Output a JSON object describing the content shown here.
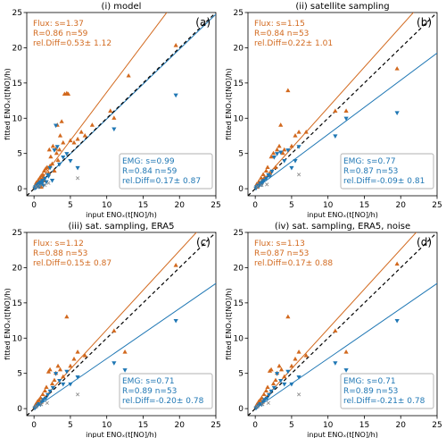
{
  "chart_data": [
    {
      "type": "scatter",
      "title": "(i) model",
      "panel_label": "(a)",
      "xlabel": "input ENOₓ(t[NO]/h)",
      "ylabel": "fitted ENOₓ(t[NO]/h)",
      "xlim": [
        -1,
        25
      ],
      "ylim": [
        -1,
        25
      ],
      "xticks": [
        0,
        5,
        10,
        15,
        20,
        25
      ],
      "yticks": [
        0,
        5,
        10,
        15,
        20,
        25
      ],
      "grid": false,
      "flux_box": {
        "lines": [
          "Flux: s=1.37",
          "R=0.86 n=59",
          "rel.Diff=0.53± 1.12"
        ],
        "position": "top-left"
      },
      "emg_box": {
        "lines": [
          "EMG: s=0.99",
          "R=0.84 n=59",
          "rel.Diff=0.17± 0.87"
        ],
        "position": "bottom-right"
      },
      "flux_fit_slope": 1.37,
      "emg_fit_slope": 0.99,
      "series": [
        {
          "name": "Flux",
          "color": "#d2691e",
          "marker": "triangle-up",
          "x": [
            0.1,
            0.2,
            0.3,
            0.4,
            0.5,
            0.5,
            0.6,
            0.7,
            0.8,
            0.9,
            1.0,
            1.0,
            1.1,
            1.2,
            1.3,
            1.4,
            1.5,
            1.6,
            1.8,
            2.0,
            2.1,
            2.2,
            2.3,
            2.5,
            2.6,
            2.8,
            3.0,
            3.1,
            3.2,
            3.3,
            3.5,
            3.6,
            3.8,
            4.0,
            4.2,
            4.5,
            4.7,
            5.0,
            5.5,
            6.0,
            6.5,
            7.0,
            8.0,
            10.5,
            11.0,
            13.0,
            19.5
          ],
          "y": [
            0.2,
            0.5,
            0.8,
            0.3,
            1.0,
            0.4,
            1.2,
            0.6,
            1.5,
            0.9,
            1.8,
            0.2,
            1.3,
            2.0,
            1.6,
            2.5,
            1.1,
            2.8,
            3.0,
            2.2,
            5.5,
            3.2,
            4.5,
            3.5,
            6.0,
            2.5,
            5.6,
            5.0,
            9.0,
            4.0,
            5.5,
            7.5,
            9.5,
            6.5,
            13.4,
            13.5,
            13.4,
            6.8,
            6.5,
            7.0,
            8.0,
            7.5,
            9.0,
            11.0,
            10.0,
            16.0,
            20.3
          ]
        },
        {
          "name": "EMG",
          "color": "#1f77b4",
          "marker": "triangle-down",
          "x": [
            0.1,
            0.2,
            0.3,
            0.4,
            0.5,
            0.6,
            0.7,
            0.8,
            0.9,
            1.0,
            1.1,
            1.2,
            1.3,
            1.5,
            1.7,
            1.9,
            2.0,
            2.2,
            2.5,
            2.8,
            3.0,
            3.2,
            3.5,
            4.0,
            4.5,
            5.0,
            6.0,
            11.0,
            19.5
          ],
          "y": [
            0.1,
            0.3,
            0.2,
            0.5,
            0.4,
            0.7,
            0.3,
            0.9,
            0.6,
            1.0,
            0.8,
            1.2,
            0.5,
            1.5,
            1.0,
            2.0,
            1.8,
            3.0,
            1.2,
            5.5,
            9.0,
            6.0,
            3.5,
            4.5,
            5.0,
            4.0,
            3.0,
            8.5,
            13.3
          ]
        },
        {
          "name": "",
          "color": "#888888",
          "marker": "x",
          "x": [
            0.3,
            0.8,
            1.5,
            2.0,
            6.0
          ],
          "y": [
            0.3,
            0.4,
            0.5,
            0.8,
            1.5
          ]
        }
      ]
    },
    {
      "type": "scatter",
      "title": "(ii) satellite sampling",
      "panel_label": "(b)",
      "xlabel": "input ENOₓ(t[NO]/h)",
      "ylabel": "fitted ENOₓ(t[NO]/h)",
      "xlim": [
        -1,
        25
      ],
      "ylim": [
        -1,
        25
      ],
      "xticks": [
        0,
        5,
        10,
        15,
        20,
        25
      ],
      "yticks": [
        0,
        5,
        10,
        15,
        20,
        25
      ],
      "grid": false,
      "flux_box": {
        "lines": [
          "Flux: s=1.15",
          "R=0.84 n=53",
          "rel.Diff=0.22± 1.01"
        ],
        "position": "top-left"
      },
      "emg_box": {
        "lines": [
          "EMG: s=0.77",
          "R=0.87 n=53",
          "rel.Diff=-0.09± 0.81"
        ],
        "position": "bottom-right"
      },
      "flux_fit_slope": 1.15,
      "emg_fit_slope": 0.77,
      "series": [
        {
          "name": "Flux",
          "color": "#d2691e",
          "marker": "triangle-up",
          "x": [
            0.1,
            0.2,
            0.3,
            0.5,
            0.6,
            0.8,
            1.0,
            1.1,
            1.3,
            1.5,
            1.7,
            2.0,
            2.2,
            2.5,
            2.8,
            3.0,
            3.3,
            3.5,
            3.8,
            4.0,
            4.5,
            5.0,
            5.5,
            6.0,
            7.0,
            11.0,
            12.5,
            19.5
          ],
          "y": [
            0.3,
            0.6,
            0.2,
            1.0,
            0.8,
            1.5,
            1.2,
            2.0,
            1.6,
            2.5,
            3.0,
            2.2,
            4.5,
            5.0,
            3.0,
            5.5,
            6.0,
            9.0,
            5.0,
            5.5,
            13.9,
            6.0,
            7.5,
            8.0,
            8.0,
            11.0,
            11.0,
            17.0
          ]
        },
        {
          "name": "EMG",
          "color": "#1f77b4",
          "marker": "triangle-down",
          "x": [
            0.1,
            0.2,
            0.4,
            0.5,
            0.7,
            0.9,
            1.0,
            1.2,
            1.5,
            1.8,
            2.0,
            2.3,
            2.6,
            3.0,
            3.5,
            4.0,
            4.5,
            5.0,
            5.5,
            6.0,
            11.0,
            12.5,
            19.5
          ],
          "y": [
            0.1,
            0.3,
            0.5,
            0.4,
            0.8,
            0.6,
            1.0,
            1.2,
            1.5,
            2.0,
            1.8,
            2.5,
            4.5,
            5.0,
            5.2,
            4.0,
            5.5,
            3.0,
            4.0,
            6.0,
            7.5,
            10.0,
            10.8
          ]
        },
        {
          "name": "",
          "color": "#888888",
          "marker": "x",
          "x": [
            0.3,
            0.9,
            1.6,
            6.0
          ],
          "y": [
            0.3,
            0.5,
            0.6,
            2.0
          ]
        }
      ]
    },
    {
      "type": "scatter",
      "title": "(iii) sat. sampling, ERA5",
      "panel_label": "(c)",
      "xlabel": "input ENOₓ(t[NO]/h)",
      "ylabel": "fitted ENOₓ(t[NO]/h)",
      "xlim": [
        -1,
        25
      ],
      "ylim": [
        -1,
        25
      ],
      "xticks": [
        0,
        5,
        10,
        15,
        20,
        25
      ],
      "yticks": [
        0,
        5,
        10,
        15,
        20,
        25
      ],
      "grid": false,
      "flux_box": {
        "lines": [
          "Flux: s=1.12",
          "R=0.88 n=53",
          "rel.Diff=0.15± 0.87"
        ],
        "position": "top-left"
      },
      "emg_box": {
        "lines": [
          "EMG: s=0.71",
          "R=0.89 n=53",
          "rel.Diff=-0.20± 0.78"
        ],
        "position": "bottom-right"
      },
      "flux_fit_slope": 1.12,
      "emg_fit_slope": 0.71,
      "series": [
        {
          "name": "Flux",
          "color": "#d2691e",
          "marker": "triangle-up",
          "x": [
            0.1,
            0.2,
            0.4,
            0.5,
            0.7,
            0.9,
            1.0,
            1.2,
            1.5,
            1.7,
            2.0,
            2.2,
            2.5,
            2.8,
            3.0,
            3.3,
            3.6,
            4.0,
            4.5,
            5.0,
            5.5,
            6.0,
            7.0,
            11.0,
            12.5,
            19.5
          ],
          "y": [
            0.2,
            0.5,
            0.8,
            1.0,
            1.2,
            1.5,
            0.9,
            2.0,
            2.5,
            3.0,
            5.2,
            5.5,
            3.5,
            4.0,
            5.0,
            6.0,
            5.5,
            4.5,
            13.0,
            6.0,
            7.0,
            8.0,
            7.5,
            11.0,
            8.0,
            20.3
          ]
        },
        {
          "name": "EMG",
          "color": "#1f77b4",
          "marker": "triangle-down",
          "x": [
            0.1,
            0.3,
            0.5,
            0.7,
            0.9,
            1.1,
            1.3,
            1.6,
            1.9,
            2.2,
            2.6,
            3.0,
            3.5,
            4.0,
            4.5,
            5.0,
            6.0,
            11.0,
            12.5,
            19.5
          ],
          "y": [
            0.1,
            0.3,
            0.5,
            0.7,
            0.6,
            1.0,
            1.3,
            1.5,
            2.0,
            2.5,
            3.0,
            5.0,
            4.0,
            3.5,
            5.3,
            3.5,
            4.5,
            6.5,
            5.5,
            12.5
          ]
        },
        {
          "name": "",
          "color": "#888888",
          "marker": "x",
          "x": [
            0.3,
            1.0,
            1.8,
            6.0
          ],
          "y": [
            0.3,
            0.6,
            0.8,
            2.0
          ]
        }
      ]
    },
    {
      "type": "scatter",
      "title": "(iv) sat. sampling, ERA5, noise",
      "panel_label": "(d)",
      "xlabel": "input ENOₓ(t[NO]/h)",
      "ylabel": "fitted ENOₓ(t[NO]/h)",
      "xlim": [
        -1,
        25
      ],
      "ylim": [
        -1,
        25
      ],
      "xticks": [
        0,
        5,
        10,
        15,
        20,
        25
      ],
      "yticks": [
        0,
        5,
        10,
        15,
        20,
        25
      ],
      "grid": false,
      "flux_box": {
        "lines": [
          "Flux: s=1.13",
          "R=0.87 n=53",
          "rel.Diff=0.17± 0.88"
        ],
        "position": "top-left"
      },
      "emg_box": {
        "lines": [
          "EMG: s=0.71",
          "R=0.89 n=53",
          "rel.Diff=-0.21± 0.78"
        ],
        "position": "bottom-right"
      },
      "flux_fit_slope": 1.13,
      "emg_fit_slope": 0.71,
      "series": [
        {
          "name": "Flux",
          "color": "#d2691e",
          "marker": "triangle-up",
          "x": [
            0.1,
            0.2,
            0.4,
            0.5,
            0.7,
            0.9,
            1.0,
            1.2,
            1.5,
            1.7,
            2.0,
            2.2,
            2.5,
            2.8,
            3.0,
            3.3,
            3.6,
            4.0,
            4.5,
            5.0,
            5.5,
            6.0,
            7.0,
            11.0,
            12.5,
            19.5
          ],
          "y": [
            0.2,
            0.5,
            0.8,
            1.0,
            1.2,
            1.5,
            0.9,
            2.0,
            2.5,
            3.0,
            5.3,
            5.5,
            3.5,
            4.0,
            5.0,
            6.0,
            5.5,
            4.5,
            13.0,
            6.0,
            7.0,
            8.0,
            7.5,
            11.0,
            8.0,
            20.5
          ]
        },
        {
          "name": "EMG",
          "color": "#1f77b4",
          "marker": "triangle-down",
          "x": [
            0.1,
            0.3,
            0.5,
            0.7,
            0.9,
            1.1,
            1.3,
            1.6,
            1.9,
            2.2,
            2.6,
            3.0,
            3.5,
            4.0,
            4.5,
            5.0,
            6.0,
            11.0,
            12.5,
            19.5
          ],
          "y": [
            0.1,
            0.3,
            0.5,
            0.7,
            0.6,
            1.0,
            1.3,
            1.5,
            2.0,
            2.5,
            3.0,
            5.0,
            4.0,
            3.5,
            5.3,
            3.5,
            4.5,
            6.5,
            5.5,
            12.5
          ]
        },
        {
          "name": "",
          "color": "#888888",
          "marker": "x",
          "x": [
            0.3,
            1.0,
            1.8,
            6.0
          ],
          "y": [
            0.3,
            0.6,
            0.8,
            2.0
          ]
        }
      ]
    }
  ]
}
